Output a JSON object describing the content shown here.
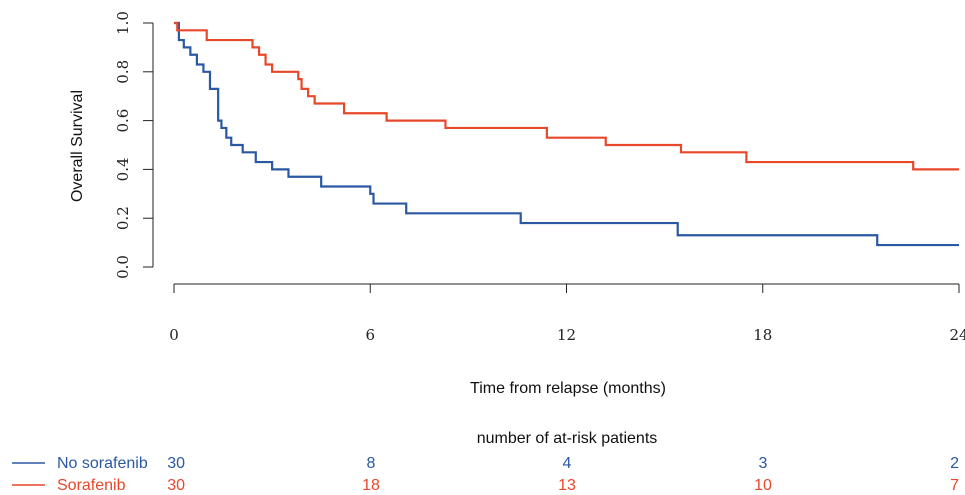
{
  "chart_data": {
    "type": "line",
    "title": "",
    "xlabel": "Time from relapse (months)",
    "ylabel": "Overall Survival",
    "xlim": [
      0,
      24
    ],
    "ylim": [
      0,
      1
    ],
    "x_ticks": [
      "0",
      "6",
      "12",
      "18",
      "24"
    ],
    "y_ticks": [
      "0.0",
      "0.2",
      "0.4",
      "0.6",
      "0.8",
      "1.0"
    ],
    "grid": false,
    "legend_position": "bottom-left",
    "series": [
      {
        "name": "No sorafenib",
        "color": "#2a58a3",
        "step": true,
        "x": [
          0,
          0.15,
          0.3,
          0.5,
          0.7,
          0.9,
          1.1,
          1.35,
          1.45,
          1.6,
          1.75,
          2.1,
          2.5,
          3.0,
          3.5,
          4.5,
          6.0,
          6.1,
          7.1,
          8.5,
          10.6,
          13.0,
          15.4,
          18.0,
          21.5,
          24.0
        ],
        "y": [
          1.0,
          0.93,
          0.9,
          0.87,
          0.83,
          0.8,
          0.73,
          0.6,
          0.57,
          0.53,
          0.5,
          0.47,
          0.43,
          0.4,
          0.37,
          0.33,
          0.3,
          0.26,
          0.22,
          0.22,
          0.18,
          0.18,
          0.13,
          0.13,
          0.09,
          0.09
        ]
      },
      {
        "name": "Sorafenib",
        "color": "#e8472a",
        "step": true,
        "x": [
          0,
          0.1,
          1.0,
          2.4,
          2.6,
          2.8,
          3.0,
          3.8,
          3.9,
          4.1,
          4.3,
          5.2,
          6.5,
          8.3,
          10.0,
          11.4,
          13.2,
          15.5,
          17.5,
          22.6,
          24.0
        ],
        "y": [
          1.0,
          0.97,
          0.93,
          0.9,
          0.87,
          0.83,
          0.8,
          0.77,
          0.73,
          0.7,
          0.67,
          0.63,
          0.6,
          0.57,
          0.57,
          0.53,
          0.5,
          0.47,
          0.43,
          0.4,
          0.4
        ]
      }
    ],
    "at_risk": {
      "title": "number of at-risk patients",
      "rows": [
        {
          "label": "No sorafenib",
          "color": "#2a58a3",
          "counts": [
            "30",
            "8",
            "4",
            "3",
            "2"
          ]
        },
        {
          "label": "Sorafenib",
          "color": "#e8472a",
          "counts": [
            "30",
            "18",
            "13",
            "10",
            "7"
          ]
        }
      ]
    }
  }
}
